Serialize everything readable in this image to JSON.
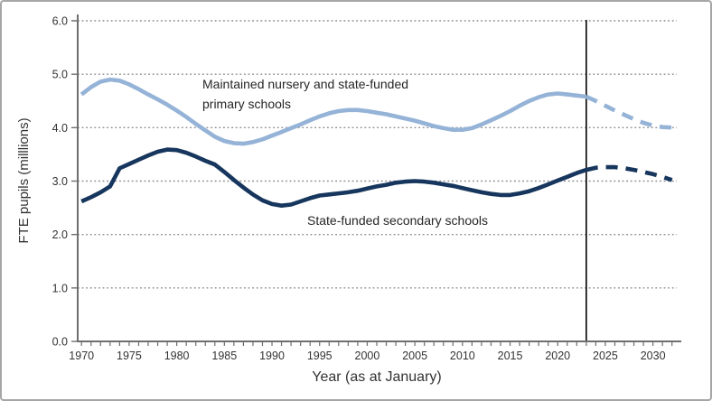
{
  "chart_data": {
    "type": "line",
    "title": "",
    "xlabel": "Year (as at January)",
    "ylabel": "FTE pupils (milllions)",
    "xlim": [
      1969.6,
      2032.5
    ],
    "ylim": [
      0,
      6
    ],
    "grid": "horizontal-dotted",
    "legend_position": "none (inline annotations)",
    "y_ticks": [
      {
        "value": 6,
        "label": "6.0"
      },
      {
        "value": 5,
        "label": "5.0"
      },
      {
        "value": 4,
        "label": "4.0"
      },
      {
        "value": 3,
        "label": "3.0"
      },
      {
        "value": 2,
        "label": "2.0"
      },
      {
        "value": 1,
        "label": "1.0"
      },
      {
        "value": 0,
        "label": "0.0"
      }
    ],
    "x_tick_labels": [
      1970,
      1975,
      1980,
      1985,
      1990,
      1995,
      2000,
      2005,
      2010,
      2015,
      2020,
      2025,
      2030
    ],
    "x_minor_ticks": {
      "start": 1970,
      "end": 2032,
      "step": 1
    },
    "projection_divider_year": 2023,
    "series": [
      {
        "name": "Maintained nursery and state-funded primary schools (actual)",
        "color": "#95B3D7",
        "style": "solid",
        "x_start": 1970,
        "x_step": 1,
        "values": [
          4.62,
          4.76,
          4.86,
          4.9,
          4.88,
          4.81,
          4.72,
          4.62,
          4.53,
          4.43,
          4.32,
          4.2,
          4.07,
          3.95,
          3.83,
          3.75,
          3.71,
          3.7,
          3.73,
          3.78,
          3.85,
          3.92,
          3.99,
          4.06,
          4.14,
          4.21,
          4.27,
          4.31,
          4.33,
          4.33,
          4.31,
          4.28,
          4.25,
          4.21,
          4.17,
          4.13,
          4.08,
          4.03,
          3.99,
          3.96,
          3.96,
          3.99,
          4.06,
          4.14,
          4.22,
          4.31,
          4.41,
          4.5,
          4.57,
          4.62,
          4.64,
          4.62,
          4.6,
          4.58
        ]
      },
      {
        "name": "Maintained nursery and state-funded primary schools (projection)",
        "color": "#95B3D7",
        "style": "dashed",
        "x_start": 2023,
        "x_step": 1,
        "values": [
          4.58,
          4.5,
          4.41,
          4.32,
          4.24,
          4.16,
          4.09,
          4.04,
          4.01,
          4.0
        ]
      },
      {
        "name": "State-funded secondary schools (actual)",
        "color": "#17365D",
        "style": "solid",
        "x_start": 1970,
        "x_step": 1,
        "values": [
          2.62,
          2.7,
          2.79,
          2.9,
          3.24,
          3.32,
          3.4,
          3.48,
          3.55,
          3.59,
          3.58,
          3.53,
          3.46,
          3.38,
          3.31,
          3.17,
          3.02,
          2.88,
          2.75,
          2.64,
          2.57,
          2.54,
          2.56,
          2.62,
          2.68,
          2.73,
          2.75,
          2.77,
          2.79,
          2.82,
          2.86,
          2.9,
          2.93,
          2.97,
          2.99,
          3.0,
          2.99,
          2.97,
          2.94,
          2.91,
          2.87,
          2.83,
          2.79,
          2.76,
          2.74,
          2.74,
          2.77,
          2.81,
          2.87,
          2.94,
          3.01,
          3.08,
          3.15,
          3.21
        ]
      },
      {
        "name": "State-funded secondary schools (projection)",
        "color": "#17365D",
        "style": "dashed",
        "x_start": 2023,
        "x_step": 1,
        "values": [
          3.21,
          3.25,
          3.26,
          3.26,
          3.24,
          3.21,
          3.17,
          3.13,
          3.08,
          3.02
        ]
      }
    ],
    "annotations": [
      {
        "text_lines": [
          "Maintained nursery and state-funded",
          "primary schools"
        ],
        "x": 222,
        "y": 96,
        "line_height": 22
      },
      {
        "text_lines": [
          "State-funded secondary schools"
        ],
        "x": 338,
        "y": 247,
        "line_height": 22
      }
    ]
  }
}
